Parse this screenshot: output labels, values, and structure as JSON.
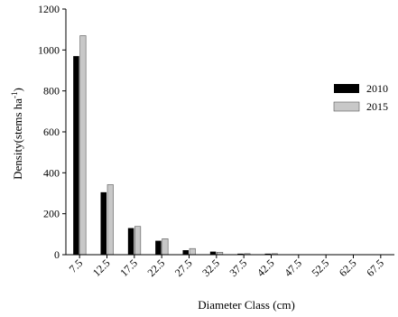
{
  "chart_data": {
    "type": "bar",
    "xlabel": "Diameter Class (cm)",
    "ylabel_main": "Density(stems ha",
    "ylabel_sup": "-1",
    "ylabel_close": ")",
    "categories": [
      "7.5",
      "12.5",
      "17.5",
      "22.5",
      "27.5",
      "32.5",
      "37.5",
      "42.5",
      "47.5",
      "52.5",
      "62.5",
      "67.5"
    ],
    "yticks": [
      "0",
      "200",
      "400",
      "600",
      "800",
      "1000",
      "1200"
    ],
    "ylim": [
      0,
      1200
    ],
    "grid": false,
    "legend_position": "right",
    "series": [
      {
        "name": "2010",
        "color": "#000000",
        "values": [
          970,
          305,
          130,
          68,
          22,
          15,
          5,
          5,
          0,
          0,
          0,
          0
        ]
      },
      {
        "name": "2015",
        "color": "#c8c8c8",
        "values": [
          1070,
          342,
          138,
          78,
          30,
          12,
          5,
          5,
          0,
          0,
          0,
          0
        ]
      }
    ]
  }
}
